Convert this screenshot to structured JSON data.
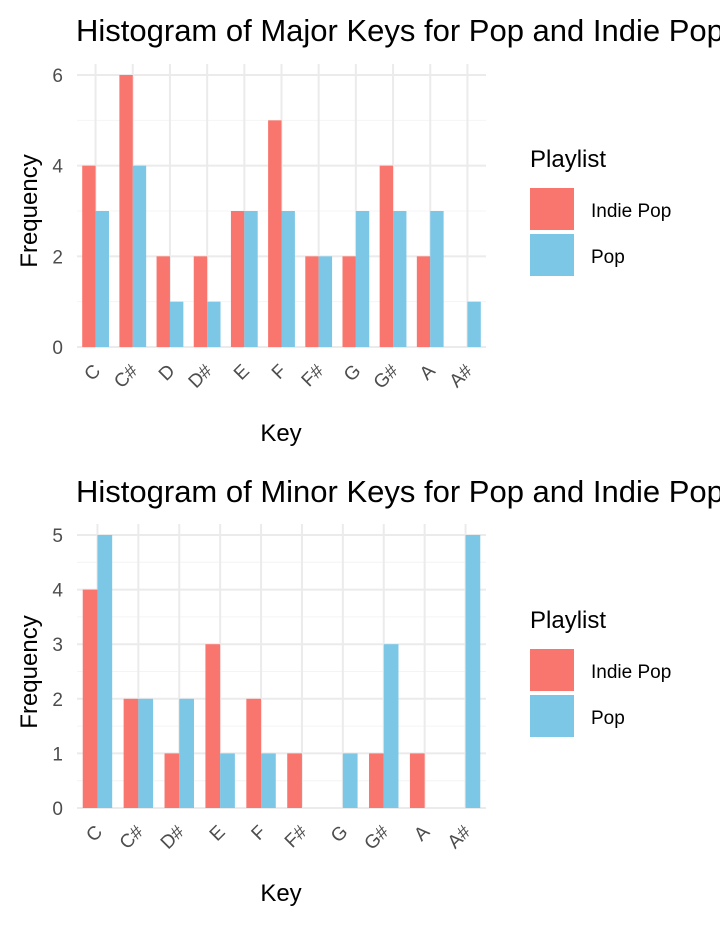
{
  "colors": {
    "indie_pop": "#F8766D",
    "pop": "#7CC6E6",
    "grid_major": "#EBEBEB",
    "grid_minor": "#F4F4F4"
  },
  "chart_data": [
    {
      "type": "bar",
      "title": "Histogram of Major Keys for Pop and Indie Pop",
      "xlabel": "Key",
      "ylabel": "Frequency",
      "categories": [
        "C",
        "C#",
        "D",
        "D#",
        "E",
        "F",
        "F#",
        "G",
        "G#",
        "A",
        "A#"
      ],
      "series": [
        {
          "name": "Indie Pop",
          "values": [
            4,
            6,
            2,
            2,
            3,
            5,
            2,
            2,
            4,
            2,
            0
          ]
        },
        {
          "name": "Pop",
          "values": [
            3,
            4,
            1,
            1,
            3,
            3,
            2,
            3,
            3,
            3,
            1
          ]
        }
      ],
      "ylim": [
        0,
        6
      ],
      "yticks": [
        0,
        2,
        4,
        6
      ],
      "legend": {
        "title": "Playlist",
        "placement": "right",
        "entries": [
          "Indie Pop",
          "Pop"
        ]
      },
      "grid": true
    },
    {
      "type": "bar",
      "title": "Histogram of Minor Keys for Pop and Indie Pop",
      "xlabel": "Key",
      "ylabel": "Frequency",
      "categories": [
        "C",
        "C#",
        "D#",
        "E",
        "F",
        "F#",
        "G",
        "G#",
        "A",
        "A#"
      ],
      "series": [
        {
          "name": "Indie Pop",
          "values": [
            4,
            2,
            1,
            3,
            2,
            1,
            0,
            1,
            1,
            0
          ]
        },
        {
          "name": "Pop",
          "values": [
            5,
            2,
            2,
            1,
            1,
            0,
            1,
            3,
            0,
            5
          ]
        }
      ],
      "ylim": [
        0,
        5
      ],
      "yticks": [
        0,
        1,
        2,
        3,
        4,
        5
      ],
      "legend": {
        "title": "Playlist",
        "placement": "right",
        "entries": [
          "Indie Pop",
          "Pop"
        ]
      },
      "grid": true
    }
  ]
}
